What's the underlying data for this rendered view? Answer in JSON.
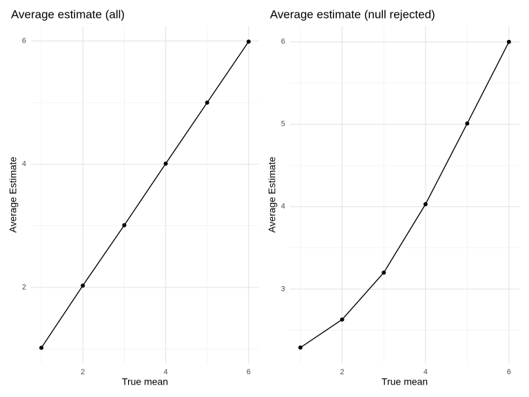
{
  "chart_data": [
    {
      "type": "line",
      "title": "Average estimate (all)",
      "x_label": "True mean",
      "y_label": "Average Estimate",
      "x": [
        1,
        2,
        3,
        4,
        5,
        6
      ],
      "series": [
        {
          "color": "#000000",
          "values": [
            1.02,
            2.03,
            3.01,
            4.01,
            5.0,
            5.99
          ]
        }
      ],
      "xlim": [
        0.75,
        6.25
      ],
      "xticks": [
        2,
        4,
        6
      ],
      "ylim": [
        0.77,
        6.24
      ],
      "yticks": [
        2,
        4,
        6
      ],
      "minor_xgrid": [
        1,
        3,
        5
      ],
      "minor_ygrid": [
        1,
        3,
        5
      ],
      "grid": true
    },
    {
      "type": "line",
      "title": "Average estimate (null rejected)",
      "x_label": "True mean",
      "y_label": "Average Estimate",
      "x": [
        1,
        2,
        3,
        4,
        5,
        6
      ],
      "series": [
        {
          "color": "#000000",
          "values": [
            2.29,
            2.63,
            3.2,
            4.03,
            5.01,
            6.0
          ]
        }
      ],
      "xlim": [
        0.75,
        6.25
      ],
      "xticks": [
        2,
        4,
        6
      ],
      "ylim": [
        2.1,
        6.19
      ],
      "yticks": [
        3,
        4,
        5,
        6
      ],
      "minor_xgrid": [
        1,
        3,
        5
      ],
      "minor_ygrid": [
        2.5,
        3.5,
        4.5,
        5.5
      ],
      "grid": true
    }
  ]
}
